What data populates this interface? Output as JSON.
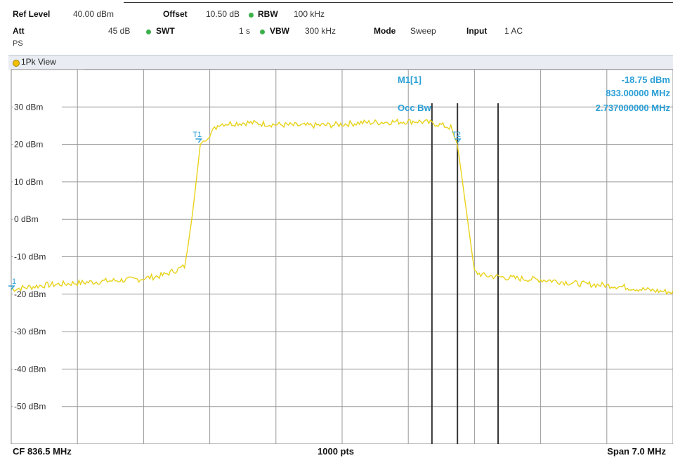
{
  "header": {
    "row1": {
      "ref_level_label": "Ref Level",
      "ref_level_value": "40.00 dBm",
      "offset_label": "Offset",
      "offset_value": "10.50 dB",
      "rbw_label": "RBW",
      "rbw_value": "100 kHz"
    },
    "row2": {
      "att_label": "Att",
      "att_value": "45 dB",
      "swt_label": "SWT",
      "swt_value": "1 s",
      "vbw_label": "VBW",
      "vbw_value": "300 kHz",
      "mode_label": "Mode",
      "mode_value": "Sweep",
      "input_label": "Input",
      "input_value": "1 AC"
    },
    "row3": {
      "ps": "PS"
    },
    "indicator_color": "#3cb04a"
  },
  "view": {
    "label": "1Pk View"
  },
  "marker_info": {
    "marker_name": "M1[1]",
    "level": "-18.75 dBm",
    "frequency": "833.00000 MHz",
    "occ_bw_label": "Occ Bw",
    "occ_bw_value": "2.737000000 MHz"
  },
  "chart_data": {
    "type": "line",
    "ylabel_ticks": [
      "30 dBm",
      "20 dBm",
      "10 dBm",
      "0 dBm",
      "-10 dBm",
      "-20 dBm",
      "-30 dBm",
      "-40 dBm",
      "-50 dBm"
    ],
    "y_ticks": [
      30,
      20,
      10,
      0,
      -10,
      -20,
      -30,
      -40,
      -50
    ],
    "ylim": [
      -60,
      40
    ],
    "xlim": [
      833.0,
      840.0
    ],
    "x_divisions": 10,
    "grid": true,
    "center_frequency": "CF 836.5 MHz",
    "points_label": "1000 pts",
    "span": "Span 7.0 MHz",
    "trace_color": "#e8d21a",
    "marker_color": "#2a9fd6",
    "series": [
      {
        "x": [
          833.0,
          833.35,
          833.7,
          834.0,
          834.35,
          834.6,
          834.75,
          834.84,
          834.92,
          835.0,
          835.2,
          835.5,
          835.8,
          836.1,
          836.4,
          836.7,
          837.0,
          837.3,
          837.5,
          837.65,
          837.72,
          837.8,
          837.9,
          838.0,
          838.3,
          838.7,
          839.0,
          839.4,
          839.7,
          840.0
        ],
        "y": [
          -18.7,
          -17.6,
          -17.0,
          -16.5,
          -16.0,
          -15.0,
          -13.5,
          -12.5,
          2.0,
          20.0,
          25.5,
          25.8,
          25.3,
          25.0,
          25.2,
          25.8,
          26.0,
          26.2,
          25.5,
          24.5,
          20.0,
          5.0,
          -14.0,
          -15.0,
          -15.7,
          -16.3,
          -17.2,
          -17.8,
          -18.8,
          -19.5
        ]
      }
    ],
    "markers": [
      {
        "label": "1",
        "x": 833.0,
        "y": -18.75
      },
      {
        "label": "T1",
        "x": 834.98,
        "y": 20.5
      },
      {
        "label": "T2",
        "x": 837.72,
        "y": 20.5
      }
    ],
    "occ_bw_lines_x": [
      837.45,
      837.72,
      838.15
    ]
  }
}
